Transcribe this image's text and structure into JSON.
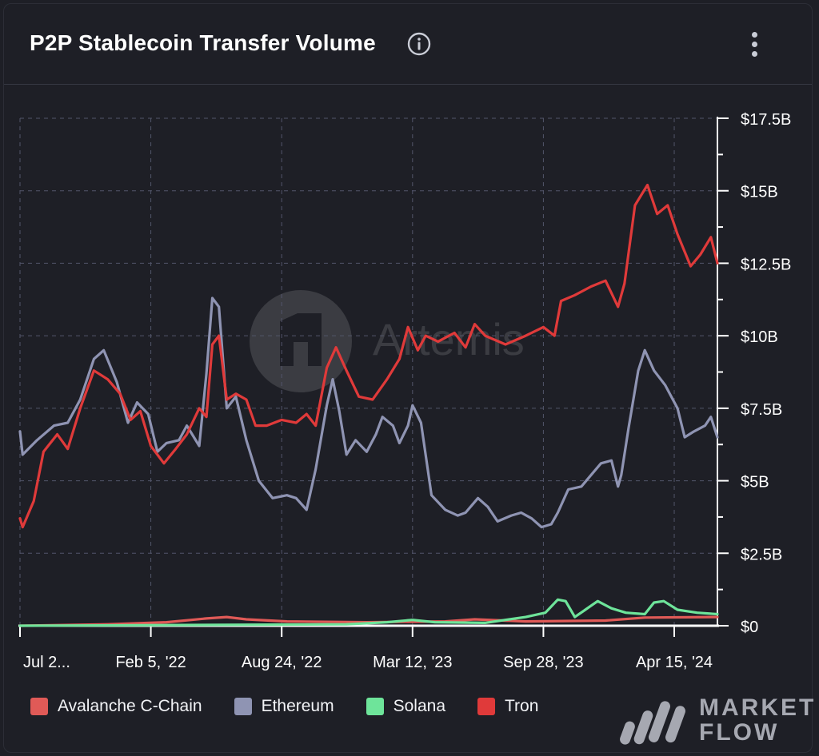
{
  "header": {
    "title": "P2P Stablecoin Transfer Volume"
  },
  "watermark": {
    "text": "Artemis"
  },
  "brand": {
    "line1": "MARKET",
    "line2": "FLOW"
  },
  "chart_data": {
    "type": "line",
    "title": "P2P Stablecoin Transfer Volume",
    "y_unit": "USD billions",
    "ylim": [
      0,
      17.5
    ],
    "y_ticks": [
      0,
      2.5,
      5,
      7.5,
      10,
      12.5,
      15,
      17.5
    ],
    "y_tick_labels": [
      "$0",
      "$2.5B",
      "$5B",
      "$7.5B",
      "$10B",
      "$12.5B",
      "$15B",
      "$17.5B"
    ],
    "x_tick_labels": [
      "Jul 2...",
      "Feb 5, '22",
      "Aug 24, '22",
      "Mar 12, '23",
      "Sep 28, '23",
      "Apr 15, '24"
    ],
    "x_range": [
      "2021-07-20",
      "2024-06-20"
    ],
    "x_ticks": [
      "2021-07-20",
      "2022-02-05",
      "2022-08-24",
      "2023-03-12",
      "2023-09-28",
      "2024-04-15"
    ],
    "grid": true,
    "legend_position": "bottom",
    "series": [
      {
        "name": "Avalanche C-Chain",
        "color": "#e05a57",
        "points": [
          [
            "2021-07-20",
            0.0
          ],
          [
            "2021-12-01",
            0.05
          ],
          [
            "2022-03-01",
            0.12
          ],
          [
            "2022-05-01",
            0.25
          ],
          [
            "2022-06-01",
            0.3
          ],
          [
            "2022-07-01",
            0.22
          ],
          [
            "2022-09-01",
            0.15
          ],
          [
            "2023-01-01",
            0.12
          ],
          [
            "2023-05-01",
            0.15
          ],
          [
            "2023-06-15",
            0.22
          ],
          [
            "2023-09-01",
            0.15
          ],
          [
            "2024-01-01",
            0.18
          ],
          [
            "2024-03-01",
            0.28
          ],
          [
            "2024-06-20",
            0.3
          ]
        ]
      },
      {
        "name": "Ethereum",
        "color": "#8f94b3",
        "points": [
          [
            "2021-07-20",
            6.7
          ],
          [
            "2021-07-24",
            5.9
          ],
          [
            "2021-08-15",
            6.4
          ],
          [
            "2021-09-10",
            6.9
          ],
          [
            "2021-10-01",
            7.0
          ],
          [
            "2021-10-20",
            7.8
          ],
          [
            "2021-11-10",
            9.2
          ],
          [
            "2021-11-25",
            9.5
          ],
          [
            "2021-12-15",
            8.4
          ],
          [
            "2022-01-01",
            7.0
          ],
          [
            "2022-01-15",
            7.7
          ],
          [
            "2022-02-01",
            7.3
          ],
          [
            "2022-02-15",
            6.0
          ],
          [
            "2022-03-01",
            6.3
          ],
          [
            "2022-03-20",
            6.4
          ],
          [
            "2022-04-01",
            6.9
          ],
          [
            "2022-04-20",
            6.2
          ],
          [
            "2022-05-01",
            8.7
          ],
          [
            "2022-05-10",
            11.3
          ],
          [
            "2022-05-20",
            11.0
          ],
          [
            "2022-06-01",
            7.5
          ],
          [
            "2022-06-15",
            7.9
          ],
          [
            "2022-07-01",
            6.4
          ],
          [
            "2022-07-20",
            5.0
          ],
          [
            "2022-08-10",
            4.4
          ],
          [
            "2022-09-01",
            4.5
          ],
          [
            "2022-09-15",
            4.4
          ],
          [
            "2022-10-01",
            4.0
          ],
          [
            "2022-10-15",
            5.4
          ],
          [
            "2022-11-01",
            7.6
          ],
          [
            "2022-11-10",
            8.5
          ],
          [
            "2022-11-20",
            7.4
          ],
          [
            "2022-12-01",
            5.9
          ],
          [
            "2022-12-15",
            6.4
          ],
          [
            "2023-01-01",
            6.0
          ],
          [
            "2023-01-15",
            6.6
          ],
          [
            "2023-01-25",
            7.2
          ],
          [
            "2023-02-10",
            6.9
          ],
          [
            "2023-02-20",
            6.3
          ],
          [
            "2023-03-05",
            6.9
          ],
          [
            "2023-03-12",
            7.6
          ],
          [
            "2023-03-25",
            7.0
          ],
          [
            "2023-04-10",
            4.5
          ],
          [
            "2023-05-01",
            4.0
          ],
          [
            "2023-05-20",
            3.8
          ],
          [
            "2023-06-01",
            3.9
          ],
          [
            "2023-06-20",
            4.4
          ],
          [
            "2023-07-05",
            4.1
          ],
          [
            "2023-07-20",
            3.6
          ],
          [
            "2023-08-10",
            3.8
          ],
          [
            "2023-08-25",
            3.9
          ],
          [
            "2023-09-10",
            3.7
          ],
          [
            "2023-09-25",
            3.4
          ],
          [
            "2023-10-10",
            3.5
          ],
          [
            "2023-10-20",
            3.9
          ],
          [
            "2023-11-05",
            4.7
          ],
          [
            "2023-11-25",
            4.8
          ],
          [
            "2023-12-10",
            5.2
          ],
          [
            "2023-12-25",
            5.6
          ],
          [
            "2024-01-10",
            5.7
          ],
          [
            "2024-01-20",
            4.8
          ],
          [
            "2024-01-25",
            5.2
          ],
          [
            "2024-02-05",
            6.8
          ],
          [
            "2024-02-20",
            8.8
          ],
          [
            "2024-03-01",
            9.5
          ],
          [
            "2024-03-15",
            8.8
          ],
          [
            "2024-04-01",
            8.3
          ],
          [
            "2024-04-20",
            7.5
          ],
          [
            "2024-05-01",
            6.5
          ],
          [
            "2024-05-15",
            6.7
          ],
          [
            "2024-06-01",
            6.9
          ],
          [
            "2024-06-10",
            7.2
          ],
          [
            "2024-06-20",
            6.5
          ]
        ]
      },
      {
        "name": "Solana",
        "color": "#6ee49a",
        "points": [
          [
            "2021-07-20",
            0.0
          ],
          [
            "2022-12-01",
            0.05
          ],
          [
            "2023-02-01",
            0.12
          ],
          [
            "2023-03-12",
            0.2
          ],
          [
            "2023-04-15",
            0.12
          ],
          [
            "2023-07-01",
            0.1
          ],
          [
            "2023-08-01",
            0.2
          ],
          [
            "2023-09-01",
            0.3
          ],
          [
            "2023-10-01",
            0.45
          ],
          [
            "2023-10-20",
            0.9
          ],
          [
            "2023-11-01",
            0.85
          ],
          [
            "2023-11-15",
            0.3
          ],
          [
            "2023-12-01",
            0.55
          ],
          [
            "2023-12-20",
            0.85
          ],
          [
            "2024-01-10",
            0.6
          ],
          [
            "2024-02-01",
            0.45
          ],
          [
            "2024-03-01",
            0.4
          ],
          [
            "2024-03-15",
            0.8
          ],
          [
            "2024-03-30",
            0.85
          ],
          [
            "2024-04-20",
            0.55
          ],
          [
            "2024-05-20",
            0.45
          ],
          [
            "2024-06-20",
            0.4
          ]
        ]
      },
      {
        "name": "Tron",
        "color": "#e03a3a",
        "points": [
          [
            "2021-07-20",
            3.7
          ],
          [
            "2021-07-24",
            3.4
          ],
          [
            "2021-08-10",
            4.3
          ],
          [
            "2021-08-25",
            6.0
          ],
          [
            "2021-09-15",
            6.6
          ],
          [
            "2021-10-01",
            6.1
          ],
          [
            "2021-10-20",
            7.5
          ],
          [
            "2021-11-10",
            8.8
          ],
          [
            "2021-12-01",
            8.5
          ],
          [
            "2021-12-20",
            8.0
          ],
          [
            "2022-01-05",
            7.1
          ],
          [
            "2022-01-20",
            7.4
          ],
          [
            "2022-02-05",
            6.2
          ],
          [
            "2022-02-25",
            5.6
          ],
          [
            "2022-03-15",
            6.1
          ],
          [
            "2022-04-01",
            6.6
          ],
          [
            "2022-04-20",
            7.5
          ],
          [
            "2022-05-01",
            7.2
          ],
          [
            "2022-05-10",
            9.7
          ],
          [
            "2022-05-20",
            10.0
          ],
          [
            "2022-06-01",
            7.8
          ],
          [
            "2022-06-15",
            8.0
          ],
          [
            "2022-07-01",
            7.8
          ],
          [
            "2022-07-15",
            6.9
          ],
          [
            "2022-08-01",
            6.9
          ],
          [
            "2022-08-24",
            7.1
          ],
          [
            "2022-09-15",
            7.0
          ],
          [
            "2022-10-01",
            7.3
          ],
          [
            "2022-10-15",
            6.9
          ],
          [
            "2022-11-01",
            8.9
          ],
          [
            "2022-11-15",
            9.6
          ],
          [
            "2022-12-01",
            8.8
          ],
          [
            "2022-12-20",
            7.9
          ],
          [
            "2023-01-10",
            7.8
          ],
          [
            "2023-02-01",
            8.5
          ],
          [
            "2023-02-20",
            9.2
          ],
          [
            "2023-03-05",
            10.3
          ],
          [
            "2023-03-20",
            9.5
          ],
          [
            "2023-04-01",
            10.0
          ],
          [
            "2023-04-20",
            9.8
          ],
          [
            "2023-05-15",
            10.1
          ],
          [
            "2023-06-01",
            9.6
          ],
          [
            "2023-06-15",
            10.4
          ],
          [
            "2023-07-01",
            10.0
          ],
          [
            "2023-08-01",
            9.7
          ],
          [
            "2023-09-01",
            10.0
          ],
          [
            "2023-09-28",
            10.3
          ],
          [
            "2023-10-15",
            10.0
          ],
          [
            "2023-10-25",
            11.2
          ],
          [
            "2023-11-15",
            11.4
          ],
          [
            "2023-12-10",
            11.7
          ],
          [
            "2024-01-01",
            11.9
          ],
          [
            "2024-01-20",
            11.0
          ],
          [
            "2024-01-30",
            11.8
          ],
          [
            "2024-02-15",
            14.5
          ],
          [
            "2024-03-05",
            15.2
          ],
          [
            "2024-03-20",
            14.2
          ],
          [
            "2024-04-05",
            14.5
          ],
          [
            "2024-04-20",
            13.5
          ],
          [
            "2024-05-10",
            12.4
          ],
          [
            "2024-05-25",
            12.8
          ],
          [
            "2024-06-10",
            13.4
          ],
          [
            "2024-06-20",
            12.5
          ]
        ]
      }
    ]
  }
}
